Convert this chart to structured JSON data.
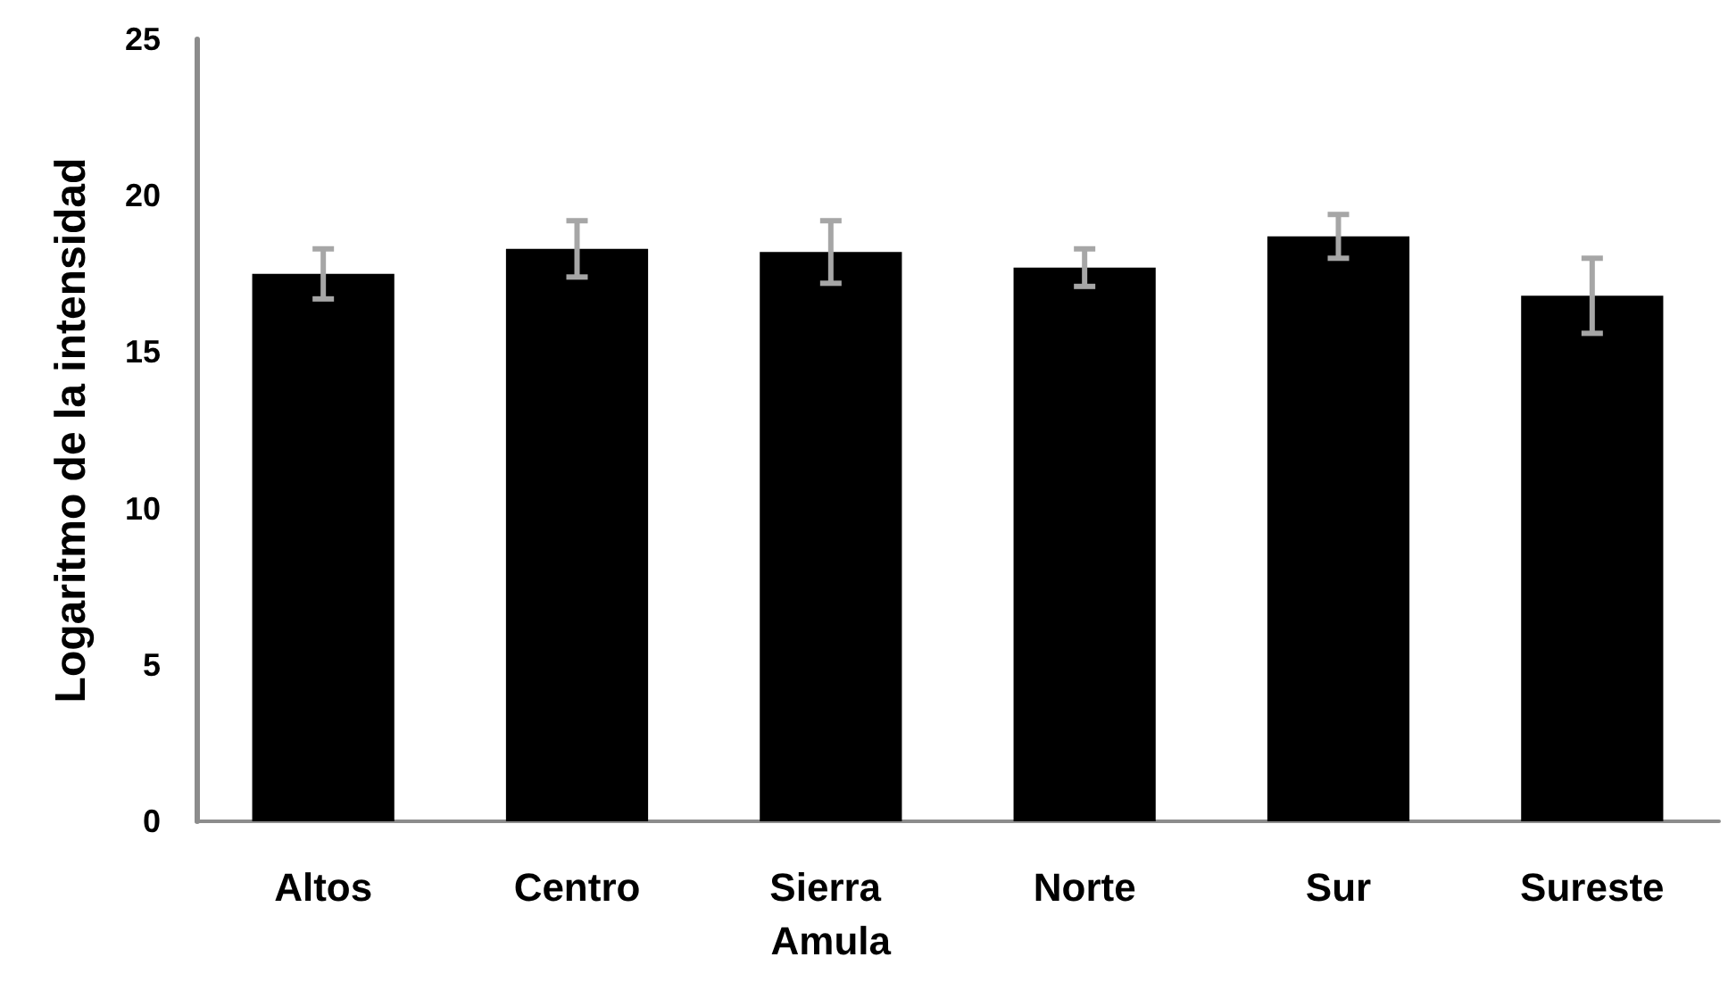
{
  "chart_data": {
    "type": "bar",
    "ylabel": "Logaritmo de la intensidad",
    "categories": [
      "Altos",
      "Centro",
      "Sierra Amula",
      "Norte",
      "Sur",
      "Sureste"
    ],
    "values": [
      17.5,
      18.3,
      18.2,
      17.7,
      18.7,
      16.8
    ],
    "errors": [
      0.8,
      0.9,
      1.0,
      0.6,
      0.7,
      1.2
    ],
    "color": "#000000",
    "ylim": [
      0,
      25
    ],
    "yticks": [
      0,
      5,
      10,
      15,
      20,
      25
    ],
    "grid": false
  }
}
